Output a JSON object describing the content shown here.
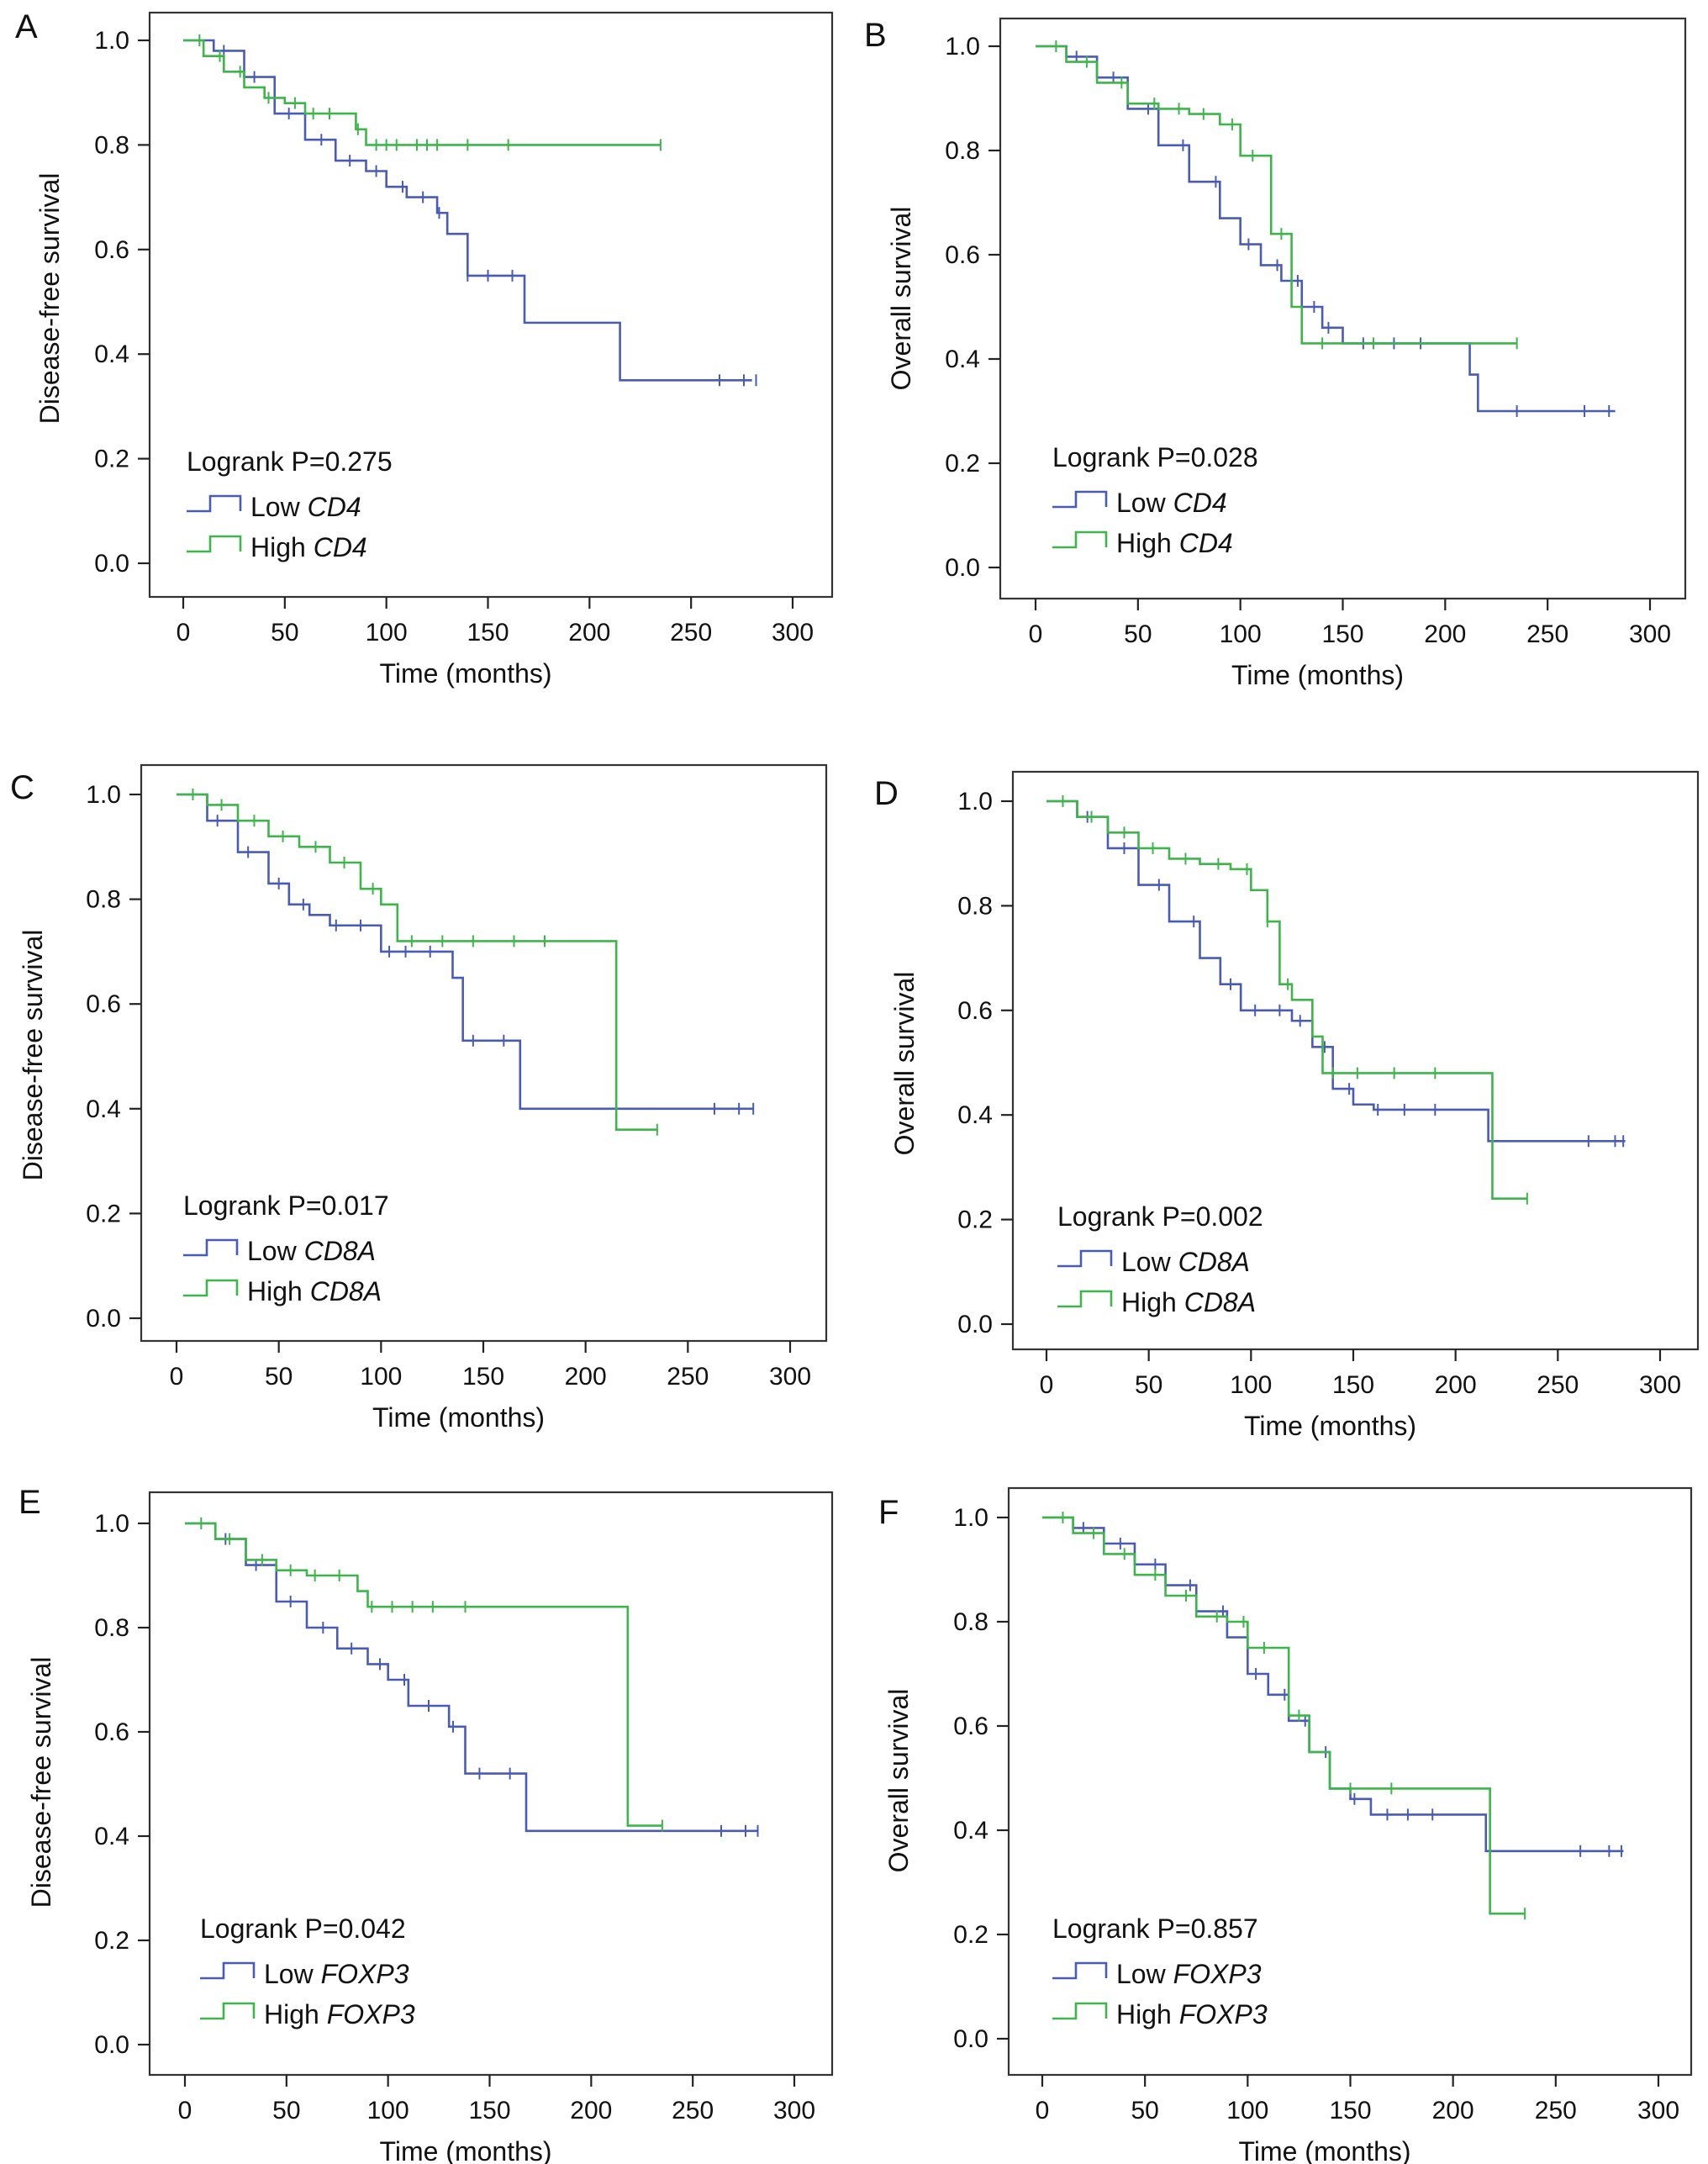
{
  "colors": {
    "low": "#4a5bb5",
    "high": "#3db54a"
  },
  "chart_data": [
    {
      "type": "line",
      "panel": "A",
      "xlabel": "Time (months)",
      "ylabel": "Disease-free survival",
      "xlim": [
        0,
        300
      ],
      "ylim": [
        0,
        1
      ],
      "xticks": [
        "0",
        "50",
        "100",
        "150",
        "200",
        "250",
        "300"
      ],
      "yticks": [
        "0.0",
        "0.2",
        "0.4",
        "0.6",
        "0.8",
        "1.0"
      ],
      "stat": "Logrank P=0.275",
      "legend_low": "Low",
      "legend_high": "High",
      "gene": "CD4",
      "series": [
        {
          "name": "Low CD4",
          "key": "low",
          "x": [
            0,
            15,
            30,
            45,
            60,
            75,
            90,
            100,
            110,
            125,
            130,
            138,
            140,
            150,
            165,
            168,
            215,
            280
          ],
          "y": [
            1,
            0.98,
            0.93,
            0.86,
            0.81,
            0.77,
            0.75,
            0.72,
            0.7,
            0.67,
            0.63,
            0.63,
            0.55,
            0.55,
            0.55,
            0.46,
            0.35,
            0.35
          ],
          "censor_x": [
            20,
            35,
            52,
            68,
            82,
            95,
            108,
            118,
            126,
            140,
            150,
            162,
            264,
            276,
            282
          ]
        },
        {
          "name": "High CD4",
          "key": "high",
          "x": [
            0,
            10,
            20,
            30,
            40,
            50,
            60,
            70,
            80,
            85,
            90,
            235
          ],
          "y": [
            1,
            0.97,
            0.94,
            0.91,
            0.89,
            0.88,
            0.86,
            0.86,
            0.86,
            0.83,
            0.8,
            0.8
          ],
          "censor_x": [
            8,
            18,
            28,
            42,
            55,
            64,
            72,
            86,
            95,
            100,
            105,
            115,
            120,
            125,
            140,
            160,
            235
          ]
        }
      ]
    },
    {
      "type": "line",
      "panel": "B",
      "xlabel": "Time (months)",
      "ylabel": "Overall survival",
      "xlim": [
        0,
        300
      ],
      "ylim": [
        0,
        1
      ],
      "xticks": [
        "0",
        "50",
        "100",
        "150",
        "200",
        "250",
        "300"
      ],
      "yticks": [
        "0.0",
        "0.2",
        "0.4",
        "0.6",
        "0.8",
        "1.0"
      ],
      "stat": "Logrank P=0.028",
      "legend_low": "Low",
      "legend_high": "High",
      "gene": "CD4",
      "series": [
        {
          "name": "Low CD4",
          "key": "low",
          "x": [
            0,
            15,
            30,
            45,
            60,
            75,
            90,
            100,
            110,
            120,
            130,
            140,
            150,
            160,
            200,
            212,
            216,
            283
          ],
          "y": [
            1,
            0.98,
            0.94,
            0.88,
            0.81,
            0.74,
            0.67,
            0.62,
            0.58,
            0.55,
            0.5,
            0.46,
            0.43,
            0.43,
            0.43,
            0.37,
            0.3,
            0.3
          ],
          "censor_x": [
            20,
            38,
            55,
            72,
            88,
            104,
            118,
            128,
            136,
            143,
            160,
            175,
            188,
            235,
            268,
            280
          ]
        },
        {
          "name": "High CD4",
          "key": "high",
          "x": [
            0,
            15,
            30,
            45,
            60,
            75,
            90,
            100,
            112,
            115,
            125,
            130,
            235
          ],
          "y": [
            1,
            0.97,
            0.93,
            0.89,
            0.88,
            0.87,
            0.85,
            0.79,
            0.79,
            0.64,
            0.5,
            0.43,
            0.43
          ],
          "censor_x": [
            10,
            25,
            42,
            58,
            70,
            82,
            96,
            106,
            120,
            140,
            165,
            235
          ]
        }
      ]
    },
    {
      "type": "line",
      "panel": "C",
      "xlabel": "Time (months)",
      "ylabel": "Disease-free survival",
      "xlim": [
        0,
        300
      ],
      "ylim": [
        0,
        1
      ],
      "xticks": [
        "0",
        "50",
        "100",
        "150",
        "200",
        "250",
        "300"
      ],
      "yticks": [
        "0.0",
        "0.2",
        "0.4",
        "0.6",
        "0.8",
        "1.0"
      ],
      "stat": "Logrank P=0.017",
      "legend_low": "Low",
      "legend_high": "High",
      "gene": "CD8A",
      "series": [
        {
          "name": "Low CD8A",
          "key": "low",
          "x": [
            0,
            15,
            30,
            45,
            55,
            65,
            75,
            100,
            120,
            135,
            140,
            165,
            168,
            282
          ],
          "y": [
            1,
            0.95,
            0.89,
            0.83,
            0.79,
            0.77,
            0.75,
            0.7,
            0.7,
            0.65,
            0.53,
            0.53,
            0.4,
            0.4
          ],
          "censor_x": [
            20,
            35,
            50,
            62,
            78,
            90,
            104,
            112,
            124,
            145,
            160,
            263,
            275,
            282
          ]
        },
        {
          "name": "High CD8A",
          "key": "high",
          "x": [
            0,
            15,
            30,
            45,
            60,
            75,
            90,
            100,
            108,
            215,
            235
          ],
          "y": [
            1,
            0.98,
            0.95,
            0.92,
            0.9,
            0.87,
            0.82,
            0.79,
            0.72,
            0.36,
            0.36
          ],
          "censor_x": [
            8,
            22,
            38,
            52,
            68,
            82,
            96,
            115,
            130,
            145,
            165,
            180,
            235
          ]
        }
      ]
    },
    {
      "type": "line",
      "panel": "D",
      "xlabel": "Time (months)",
      "ylabel": "Overall survival",
      "xlim": [
        0,
        300
      ],
      "ylim": [
        0,
        1
      ],
      "xticks": [
        "0",
        "50",
        "100",
        "150",
        "200",
        "250",
        "300"
      ],
      "yticks": [
        "0.0",
        "0.2",
        "0.4",
        "0.6",
        "0.8",
        "1.0"
      ],
      "stat": "Logrank P=0.002",
      "legend_low": "Low",
      "legend_high": "High",
      "gene": "CD8A",
      "series": [
        {
          "name": "Low CD8A",
          "key": "low",
          "x": [
            0,
            15,
            30,
            45,
            60,
            75,
            85,
            95,
            110,
            120,
            130,
            140,
            150,
            160,
            214,
            216,
            283
          ],
          "y": [
            1,
            0.97,
            0.91,
            0.84,
            0.77,
            0.7,
            0.65,
            0.6,
            0.6,
            0.58,
            0.53,
            0.45,
            0.42,
            0.41,
            0.41,
            0.35,
            0.35
          ],
          "censor_x": [
            20,
            38,
            55,
            72,
            90,
            102,
            114,
            124,
            136,
            148,
            162,
            175,
            190,
            265,
            278,
            282
          ]
        },
        {
          "name": "High CD8A",
          "key": "high",
          "x": [
            0,
            15,
            30,
            45,
            60,
            75,
            90,
            100,
            108,
            112,
            114,
            120,
            130,
            135,
            216,
            218,
            235
          ],
          "y": [
            1,
            0.97,
            0.94,
            0.91,
            0.89,
            0.88,
            0.87,
            0.83,
            0.77,
            0.77,
            0.65,
            0.62,
            0.55,
            0.48,
            0.48,
            0.24,
            0.24
          ],
          "censor_x": [
            8,
            22,
            38,
            52,
            68,
            84,
            98,
            108,
            118,
            140,
            152,
            170,
            190,
            235
          ]
        }
      ]
    },
    {
      "type": "line",
      "panel": "E",
      "xlabel": "Time (months)",
      "ylabel": "Disease-free survival",
      "xlim": [
        0,
        300
      ],
      "ylim": [
        0,
        1
      ],
      "xticks": [
        "0",
        "50",
        "100",
        "150",
        "200",
        "250",
        "300"
      ],
      "yticks": [
        "0.0",
        "0.2",
        "0.4",
        "0.6",
        "0.8",
        "1.0"
      ],
      "stat": "Logrank P=0.042",
      "legend_low": "Low",
      "legend_high": "High",
      "gene": "FOXP3",
      "series": [
        {
          "name": "Low FOXP3",
          "key": "low",
          "x": [
            0,
            15,
            30,
            45,
            60,
            75,
            90,
            100,
            110,
            125,
            130,
            135,
            138,
            150,
            165,
            168,
            282
          ],
          "y": [
            1,
            0.97,
            0.92,
            0.85,
            0.8,
            0.76,
            0.73,
            0.7,
            0.65,
            0.65,
            0.61,
            0.61,
            0.52,
            0.52,
            0.52,
            0.41,
            0.41
          ],
          "censor_x": [
            20,
            35,
            52,
            68,
            82,
            96,
            108,
            120,
            132,
            145,
            160,
            264,
            276,
            282
          ]
        },
        {
          "name": "High FOXP3",
          "key": "high",
          "x": [
            0,
            15,
            30,
            45,
            60,
            75,
            85,
            90,
            215,
            218,
            235
          ],
          "y": [
            1,
            0.97,
            0.93,
            0.91,
            0.9,
            0.9,
            0.87,
            0.84,
            0.84,
            0.42,
            0.42
          ],
          "censor_x": [
            8,
            22,
            38,
            52,
            64,
            76,
            92,
            102,
            112,
            122,
            138,
            235
          ]
        }
      ]
    },
    {
      "type": "line",
      "panel": "F",
      "xlabel": "Time (months)",
      "ylabel": "Overall survival",
      "xlim": [
        0,
        300
      ],
      "ylim": [
        0,
        1
      ],
      "xticks": [
        "0",
        "50",
        "100",
        "150",
        "200",
        "250",
        "300"
      ],
      "yticks": [
        "0.0",
        "0.2",
        "0.4",
        "0.6",
        "0.8",
        "1.0"
      ],
      "stat": "Logrank P=0.857",
      "legend_low": "Low",
      "legend_high": "High",
      "gene": "FOXP3",
      "series": [
        {
          "name": "Low FOXP3",
          "key": "low",
          "x": [
            0,
            15,
            30,
            45,
            60,
            75,
            90,
            100,
            110,
            120,
            130,
            140,
            150,
            160,
            214,
            216,
            283
          ],
          "y": [
            1,
            0.98,
            0.95,
            0.91,
            0.87,
            0.82,
            0.77,
            0.7,
            0.66,
            0.61,
            0.55,
            0.48,
            0.46,
            0.43,
            0.43,
            0.36,
            0.36
          ],
          "censor_x": [
            20,
            38,
            55,
            72,
            88,
            104,
            118,
            128,
            138,
            152,
            168,
            178,
            190,
            262,
            276,
            282
          ]
        },
        {
          "name": "High FOXP3",
          "key": "high",
          "x": [
            0,
            15,
            30,
            45,
            60,
            75,
            90,
            100,
            115,
            120,
            130,
            140,
            216,
            218,
            235
          ],
          "y": [
            1,
            0.97,
            0.93,
            0.89,
            0.85,
            0.81,
            0.8,
            0.75,
            0.75,
            0.62,
            0.55,
            0.48,
            0.48,
            0.24,
            0.24
          ],
          "censor_x": [
            10,
            25,
            40,
            55,
            70,
            85,
            98,
            108,
            125,
            150,
            170,
            235
          ]
        }
      ]
    }
  ]
}
